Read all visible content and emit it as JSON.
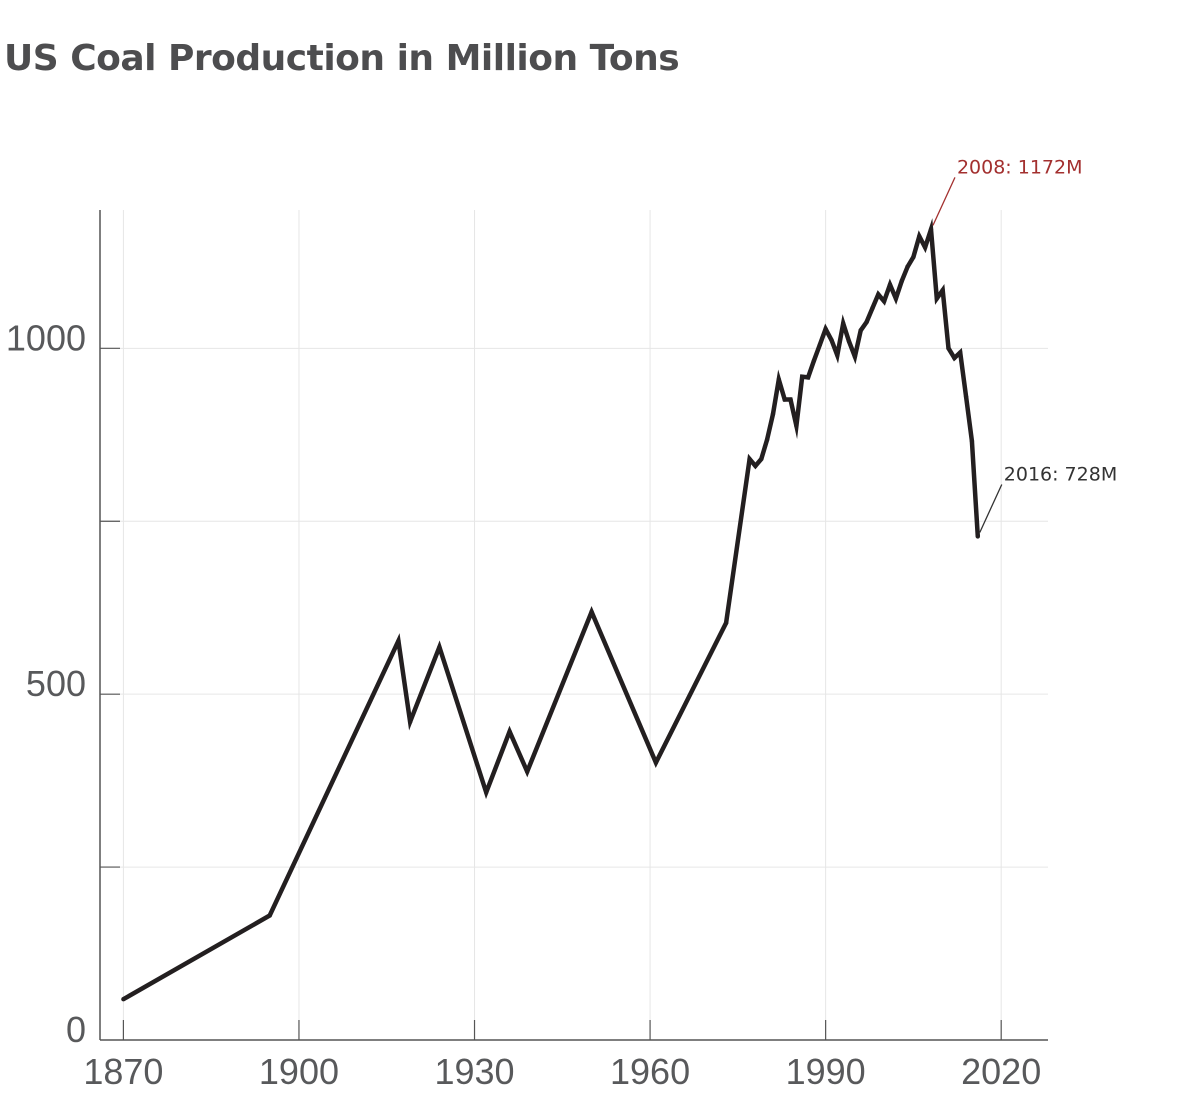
{
  "chart_data": {
    "type": "line",
    "title": "US Coal Production in Million Tons",
    "xlabel": "",
    "ylabel": "",
    "xlim": [
      1866,
      2028
    ],
    "ylim": [
      0,
      1200
    ],
    "grid": true,
    "colors": {
      "line": "#231f20",
      "title": "#4d4d4f",
      "tick_label": "#58595b",
      "grid": "#e6e6e6",
      "axis": "#555555",
      "highlight": "#a3302f",
      "annotation": "#333333"
    },
    "x_ticks": [
      1870,
      1900,
      1930,
      1960,
      1990,
      2020
    ],
    "x_tick_labels": [
      "1870",
      "1900",
      "1930",
      "1960",
      "1990",
      "2020"
    ],
    "y_ticks": [
      0,
      500,
      1000
    ],
    "y_tick_labels": [
      "0",
      "500",
      "1000"
    ],
    "y_gridlines": [
      250,
      500,
      750,
      1000
    ],
    "series": [
      {
        "x": [
          1870,
          1895,
          1917,
          1919,
          1924,
          1932,
          1936,
          1939,
          1950,
          1961,
          1973,
          1977,
          1978,
          1979,
          1980,
          1981,
          1982,
          1983,
          1984,
          1985,
          1986,
          1987,
          1988,
          1989,
          1990,
          1991,
          1992,
          1993,
          1994,
          1995,
          1996,
          1997,
          1998,
          1999,
          2000,
          2001,
          2002,
          2003,
          2004,
          2005,
          2006,
          2007,
          2008,
          2009,
          2010,
          2011,
          2012,
          2013,
          2014,
          2015,
          2016
        ],
        "y": [
          59,
          180,
          577,
          460,
          568,
          358,
          446,
          388,
          619,
          401,
          603,
          840,
          830,
          840,
          868,
          905,
          955,
          926,
          926,
          888,
          959,
          958,
          982,
          1005,
          1028,
          1012,
          990,
          1036,
          1010,
          988,
          1026,
          1038,
          1058,
          1078,
          1068,
          1092,
          1072,
          1097,
          1118,
          1132,
          1162,
          1146,
          1172,
          1072,
          1084,
          1000,
          986,
          994,
          930,
          866,
          728
        ]
      }
    ],
    "annotations": [
      {
        "text": "2008: 1172M",
        "x": 2008,
        "y": 1172,
        "color": "#a3302f"
      },
      {
        "text": "2016: 728M",
        "x": 2016,
        "y": 728,
        "color": "#333333"
      }
    ]
  }
}
